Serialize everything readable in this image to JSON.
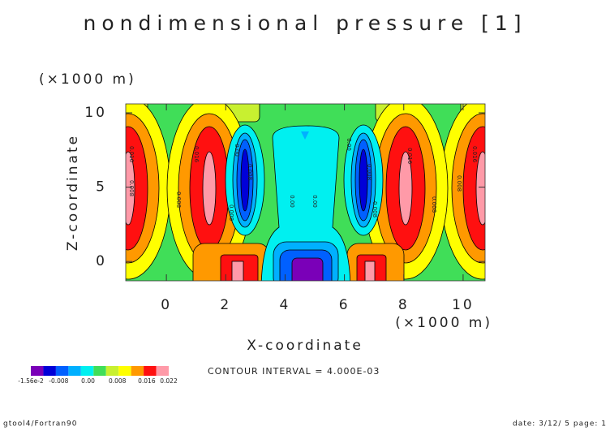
{
  "chart_data": {
    "type": "contour",
    "title": "nondimensional pressure [1]",
    "xlabel": "X-coordinate",
    "xunit": "(×1000 m)",
    "ylabel": "Z-coordinate",
    "yunit": "(×1000 m)",
    "xlim": [
      -1.37,
      10.74
    ],
    "xticks": [
      0,
      2,
      4,
      6,
      8,
      10
    ],
    "ylim": [
      -1.3,
      10.6
    ],
    "yticks": [
      0,
      5,
      10
    ],
    "colorbar": {
      "colors": [
        "#7a00b8",
        "#0000d8",
        "#0060ff",
        "#00b0ff",
        "#00f0f0",
        "#40de58",
        "#c8f030",
        "#ffff00",
        "#ff9900",
        "#ff1010",
        "#ff9aa8"
      ],
      "ticks": [
        {
          "value": -0.0156,
          "label": "-1.56e-2"
        },
        {
          "value": -0.008,
          "label": "-0.008"
        },
        {
          "value": 0,
          "label": "0.00"
        },
        0.008,
        0.016,
        0.022
      ]
    },
    "contour_labels": [
      "0.016",
      "0.008",
      "0.008",
      "0.016",
      "0.00",
      "0.008",
      "0.008",
      "0.00",
      "0.00",
      "0.00",
      "0.008",
      "0.008",
      "0.016",
      "0.008",
      "0.016",
      "0.008"
    ],
    "contour_interval": "CONTOUR INTERVAL = 4.000E-03",
    "footer_left": "gtool4/Fortran90",
    "footer_right": "date: 3/12/ 5 page: 1"
  }
}
